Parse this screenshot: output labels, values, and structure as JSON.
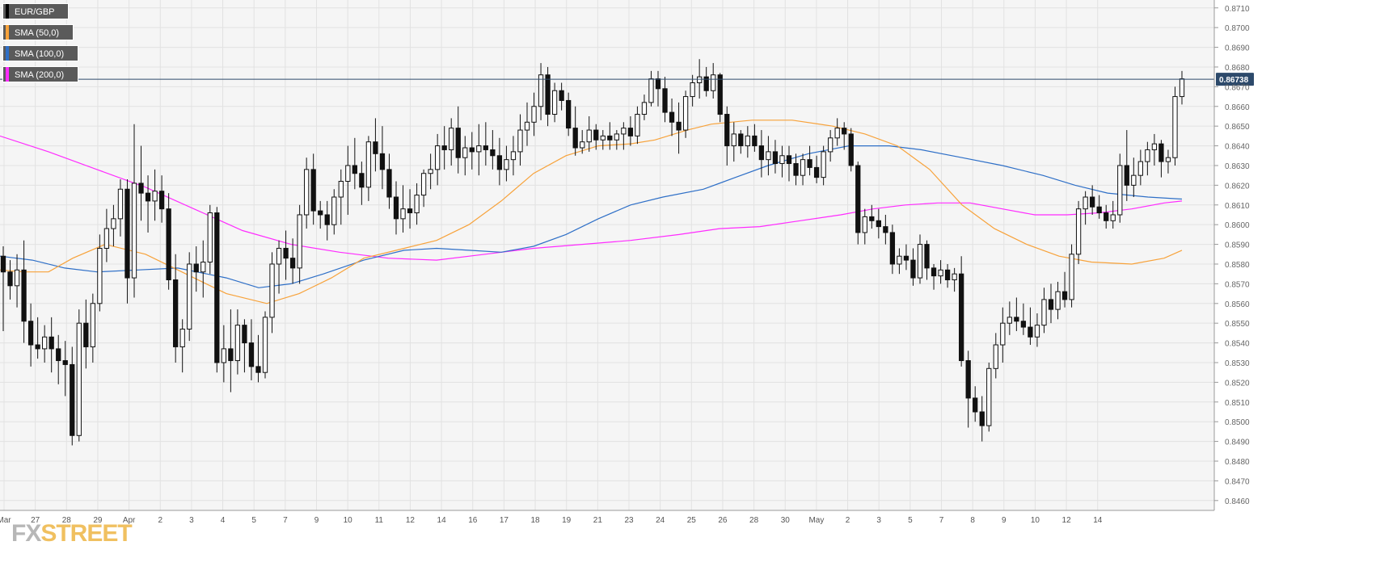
{
  "chart_data": {
    "type": "candlestick",
    "symbol": "EUR/GBP",
    "current_price_label": "0.86738",
    "current_price": 0.86738,
    "ylim": [
      0.8455,
      0.8714
    ],
    "y_ticks": [
      "0.8710",
      "0.8700",
      "0.8690",
      "0.8680",
      "0.8670",
      "0.8660",
      "0.8650",
      "0.8640",
      "0.8630",
      "0.8620",
      "0.8610",
      "0.8600",
      "0.8590",
      "0.8580",
      "0.8570",
      "0.8560",
      "0.8550",
      "0.8540",
      "0.8530",
      "0.8520",
      "0.8510",
      "0.8500",
      "0.8490",
      "0.8480",
      "0.8470",
      "0.8460"
    ],
    "x_ticks": [
      "Mar",
      "27",
      "28",
      "29",
      "Apr",
      "2",
      "3",
      "4",
      "5",
      "7",
      "9",
      "10",
      "11",
      "12",
      "14",
      "16",
      "17",
      "18",
      "19",
      "21",
      "23",
      "24",
      "25",
      "26",
      "28",
      "30",
      "May",
      "2",
      "3",
      "5",
      "7",
      "8",
      "9",
      "10",
      "12",
      "14"
    ],
    "grid": true,
    "legend": [
      {
        "label": "EUR/GBP",
        "color": "#000000"
      },
      {
        "label": "SMA (50,0)",
        "color": "#f7a23a"
      },
      {
        "label": "SMA (100,0)",
        "color": "#2e6fc7"
      },
      {
        "label": "SMA (200,0)",
        "color": "#ff2bff"
      }
    ],
    "candles": [
      [
        0.8584,
        0.8589,
        0.8546,
        0.8576
      ],
      [
        0.8576,
        0.8582,
        0.8562,
        0.8569
      ],
      [
        0.8569,
        0.8585,
        0.8558,
        0.8577
      ],
      [
        0.8577,
        0.8592,
        0.854,
        0.8551
      ],
      [
        0.8551,
        0.856,
        0.8528,
        0.8539
      ],
      [
        0.8539,
        0.8553,
        0.8532,
        0.8537
      ],
      [
        0.8537,
        0.8549,
        0.853,
        0.8543
      ],
      [
        0.8543,
        0.8553,
        0.8525,
        0.8537
      ],
      [
        0.8537,
        0.8544,
        0.8519,
        0.8531
      ],
      [
        0.8531,
        0.8541,
        0.8513,
        0.8529
      ],
      [
        0.8529,
        0.8538,
        0.8488,
        0.8493
      ],
      [
        0.8493,
        0.8557,
        0.849,
        0.855
      ],
      [
        0.855,
        0.8562,
        0.8527,
        0.8538
      ],
      [
        0.8538,
        0.8565,
        0.853,
        0.856
      ],
      [
        0.856,
        0.8595,
        0.8556,
        0.8588
      ],
      [
        0.8588,
        0.8608,
        0.8581,
        0.8598
      ],
      [
        0.8598,
        0.861,
        0.8589,
        0.8603
      ],
      [
        0.8603,
        0.8623,
        0.8594,
        0.8618
      ],
      [
        0.8618,
        0.8623,
        0.856,
        0.8573
      ],
      [
        0.8573,
        0.8651,
        0.8563,
        0.8621
      ],
      [
        0.8621,
        0.864,
        0.8602,
        0.8616
      ],
      [
        0.8616,
        0.8625,
        0.8596,
        0.8612
      ],
      [
        0.8612,
        0.8628,
        0.8602,
        0.8617
      ],
      [
        0.8617,
        0.8625,
        0.8601,
        0.8608
      ],
      [
        0.8608,
        0.8616,
        0.8567,
        0.8572
      ],
      [
        0.8572,
        0.8585,
        0.853,
        0.8538
      ],
      [
        0.8538,
        0.8552,
        0.8525,
        0.8547
      ],
      [
        0.8547,
        0.8586,
        0.8541,
        0.858
      ],
      [
        0.858,
        0.8589,
        0.8566,
        0.8576
      ],
      [
        0.8576,
        0.8592,
        0.8563,
        0.8581
      ],
      [
        0.8581,
        0.861,
        0.8575,
        0.8606
      ],
      [
        0.8606,
        0.8609,
        0.8525,
        0.853
      ],
      [
        0.853,
        0.8549,
        0.852,
        0.8537
      ],
      [
        0.8537,
        0.8557,
        0.8515,
        0.8531
      ],
      [
        0.8531,
        0.8557,
        0.8524,
        0.8549
      ],
      [
        0.8549,
        0.8552,
        0.8525,
        0.854
      ],
      [
        0.854,
        0.8552,
        0.8521,
        0.8528
      ],
      [
        0.8528,
        0.8544,
        0.852,
        0.8525
      ],
      [
        0.8525,
        0.8556,
        0.8522,
        0.8553
      ],
      [
        0.8553,
        0.8586,
        0.8545,
        0.858
      ],
      [
        0.858,
        0.8592,
        0.8565,
        0.8588
      ],
      [
        0.8588,
        0.8597,
        0.8572,
        0.8583
      ],
      [
        0.8583,
        0.8593,
        0.857,
        0.8578
      ],
      [
        0.8578,
        0.861,
        0.857,
        0.8605
      ],
      [
        0.8605,
        0.8634,
        0.8598,
        0.8628
      ],
      [
        0.8628,
        0.8636,
        0.86,
        0.8607
      ],
      [
        0.8607,
        0.8612,
        0.8598,
        0.8605
      ],
      [
        0.8605,
        0.8612,
        0.8592,
        0.86
      ],
      [
        0.86,
        0.8618,
        0.8595,
        0.8614
      ],
      [
        0.8614,
        0.8628,
        0.86,
        0.8622
      ],
      [
        0.8622,
        0.864,
        0.8605,
        0.863
      ],
      [
        0.863,
        0.8644,
        0.8618,
        0.8626
      ],
      [
        0.8626,
        0.8632,
        0.861,
        0.8619
      ],
      [
        0.8619,
        0.8645,
        0.8612,
        0.8642
      ],
      [
        0.8642,
        0.8654,
        0.8627,
        0.8636
      ],
      [
        0.8636,
        0.865,
        0.8618,
        0.8628
      ],
      [
        0.8628,
        0.8636,
        0.8608,
        0.8614
      ],
      [
        0.8614,
        0.8622,
        0.8595,
        0.8603
      ],
      [
        0.8603,
        0.862,
        0.8596,
        0.8608
      ],
      [
        0.8608,
        0.8618,
        0.8598,
        0.8606
      ],
      [
        0.8606,
        0.8621,
        0.86,
        0.8615
      ],
      [
        0.8615,
        0.8628,
        0.8609,
        0.8626
      ],
      [
        0.8626,
        0.8636,
        0.8618,
        0.8628
      ],
      [
        0.8628,
        0.8646,
        0.862,
        0.864
      ],
      [
        0.864,
        0.865,
        0.8628,
        0.8638
      ],
      [
        0.8638,
        0.8654,
        0.863,
        0.8649
      ],
      [
        0.8649,
        0.866,
        0.8626,
        0.8634
      ],
      [
        0.8634,
        0.8645,
        0.8625,
        0.8639
      ],
      [
        0.8639,
        0.8647,
        0.8628,
        0.8637
      ],
      [
        0.8637,
        0.8651,
        0.8625,
        0.864
      ],
      [
        0.864,
        0.8652,
        0.863,
        0.8638
      ],
      [
        0.8638,
        0.8648,
        0.8628,
        0.8635
      ],
      [
        0.8635,
        0.8644,
        0.862,
        0.8628
      ],
      [
        0.8628,
        0.864,
        0.8622,
        0.8633
      ],
      [
        0.8633,
        0.8645,
        0.8625,
        0.8637
      ],
      [
        0.8637,
        0.8656,
        0.863,
        0.8648
      ],
      [
        0.8648,
        0.8662,
        0.864,
        0.8652
      ],
      [
        0.8652,
        0.8667,
        0.8645,
        0.866
      ],
      [
        0.866,
        0.8682,
        0.8653,
        0.8676
      ],
      [
        0.8676,
        0.868,
        0.865,
        0.8656
      ],
      [
        0.8656,
        0.8672,
        0.8652,
        0.8668
      ],
      [
        0.8668,
        0.8672,
        0.8658,
        0.8663
      ],
      [
        0.8663,
        0.8667,
        0.8645,
        0.8649
      ],
      [
        0.8649,
        0.866,
        0.8635,
        0.8639
      ],
      [
        0.8639,
        0.8648,
        0.8636,
        0.8642
      ],
      [
        0.8642,
        0.8655,
        0.8637,
        0.8648
      ],
      [
        0.8648,
        0.8651,
        0.8638,
        0.8643
      ],
      [
        0.8643,
        0.8648,
        0.8638,
        0.8645
      ],
      [
        0.8645,
        0.8652,
        0.8638,
        0.8643
      ],
      [
        0.8643,
        0.8648,
        0.8638,
        0.8646
      ],
      [
        0.8646,
        0.8652,
        0.8638,
        0.8649
      ],
      [
        0.8649,
        0.8655,
        0.864,
        0.8645
      ],
      [
        0.8645,
        0.866,
        0.8641,
        0.8656
      ],
      [
        0.8656,
        0.8666,
        0.8653,
        0.8662
      ],
      [
        0.8662,
        0.8678,
        0.866,
        0.8674
      ],
      [
        0.8674,
        0.8678,
        0.866,
        0.8669
      ],
      [
        0.8669,
        0.8675,
        0.8652,
        0.8657
      ],
      [
        0.8657,
        0.8664,
        0.8645,
        0.8652
      ],
      [
        0.8652,
        0.8662,
        0.8636,
        0.8648
      ],
      [
        0.8648,
        0.8668,
        0.8644,
        0.8665
      ],
      [
        0.8665,
        0.8676,
        0.866,
        0.8672
      ],
      [
        0.8672,
        0.8684,
        0.8664,
        0.8675
      ],
      [
        0.8675,
        0.868,
        0.8665,
        0.8668
      ],
      [
        0.8668,
        0.8682,
        0.8664,
        0.8676
      ],
      [
        0.8676,
        0.8677,
        0.8652,
        0.8656
      ],
      [
        0.8656,
        0.866,
        0.863,
        0.864
      ],
      [
        0.864,
        0.8652,
        0.8632,
        0.8646
      ],
      [
        0.8646,
        0.8648,
        0.8636,
        0.864
      ],
      [
        0.864,
        0.865,
        0.8634,
        0.8645
      ],
      [
        0.8645,
        0.8651,
        0.8637,
        0.864
      ],
      [
        0.864,
        0.8648,
        0.8624,
        0.8633
      ],
      [
        0.8633,
        0.8645,
        0.8625,
        0.8637
      ],
      [
        0.8637,
        0.8643,
        0.8626,
        0.8631
      ],
      [
        0.8631,
        0.864,
        0.8624,
        0.8635
      ],
      [
        0.8635,
        0.864,
        0.8622,
        0.8631
      ],
      [
        0.8631,
        0.8636,
        0.862,
        0.8625
      ],
      [
        0.8625,
        0.8636,
        0.862,
        0.8633
      ],
      [
        0.8633,
        0.864,
        0.8625,
        0.8629
      ],
      [
        0.8629,
        0.8635,
        0.8621,
        0.8624
      ],
      [
        0.8624,
        0.864,
        0.862,
        0.8637
      ],
      [
        0.8637,
        0.8648,
        0.8632,
        0.8644
      ],
      [
        0.8644,
        0.8654,
        0.864,
        0.8649
      ],
      [
        0.8649,
        0.8652,
        0.8638,
        0.8646
      ],
      [
        0.8646,
        0.8649,
        0.8627,
        0.863
      ],
      [
        0.863,
        0.8632,
        0.859,
        0.8596
      ],
      [
        0.8596,
        0.8608,
        0.859,
        0.8604
      ],
      [
        0.8604,
        0.861,
        0.8598,
        0.8602
      ],
      [
        0.8602,
        0.8608,
        0.8593,
        0.8599
      ],
      [
        0.8599,
        0.8605,
        0.859,
        0.8596
      ],
      [
        0.8596,
        0.86,
        0.8575,
        0.858
      ],
      [
        0.858,
        0.8588,
        0.8575,
        0.8584
      ],
      [
        0.8584,
        0.859,
        0.8577,
        0.8582
      ],
      [
        0.8582,
        0.8588,
        0.8569,
        0.8573
      ],
      [
        0.8573,
        0.8595,
        0.857,
        0.859
      ],
      [
        0.859,
        0.8592,
        0.8572,
        0.8578
      ],
      [
        0.8578,
        0.858,
        0.8567,
        0.8574
      ],
      [
        0.8574,
        0.8582,
        0.857,
        0.8577
      ],
      [
        0.8577,
        0.858,
        0.8568,
        0.8572
      ],
      [
        0.8572,
        0.8578,
        0.8566,
        0.8575
      ],
      [
        0.8575,
        0.8584,
        0.8528,
        0.8531
      ],
      [
        0.8531,
        0.8536,
        0.8497,
        0.8512
      ],
      [
        0.8512,
        0.8518,
        0.85,
        0.8505
      ],
      [
        0.8505,
        0.8513,
        0.849,
        0.8498
      ],
      [
        0.8498,
        0.853,
        0.8495,
        0.8527
      ],
      [
        0.8527,
        0.8545,
        0.8522,
        0.8539
      ],
      [
        0.8539,
        0.8558,
        0.853,
        0.855
      ],
      [
        0.855,
        0.8561,
        0.8544,
        0.8553
      ],
      [
        0.8553,
        0.8563,
        0.8546,
        0.8551
      ],
      [
        0.8551,
        0.856,
        0.8544,
        0.8548
      ],
      [
        0.8548,
        0.8558,
        0.8539,
        0.8543
      ],
      [
        0.8543,
        0.8555,
        0.8538,
        0.8549
      ],
      [
        0.8549,
        0.8568,
        0.8545,
        0.8562
      ],
      [
        0.8562,
        0.857,
        0.855,
        0.8557
      ],
      [
        0.8557,
        0.8571,
        0.8552,
        0.8566
      ],
      [
        0.8566,
        0.8576,
        0.8558,
        0.8562
      ],
      [
        0.8562,
        0.859,
        0.8558,
        0.8585
      ],
      [
        0.8585,
        0.8612,
        0.858,
        0.8608
      ],
      [
        0.8608,
        0.8617,
        0.86,
        0.8614
      ],
      [
        0.8614,
        0.862,
        0.8605,
        0.8609
      ],
      [
        0.8609,
        0.8615,
        0.8603,
        0.8606
      ],
      [
        0.8606,
        0.861,
        0.8598,
        0.8602
      ],
      [
        0.8602,
        0.8612,
        0.8598,
        0.8605
      ],
      [
        0.8605,
        0.8636,
        0.8601,
        0.863
      ],
      [
        0.863,
        0.8648,
        0.8612,
        0.862
      ],
      [
        0.862,
        0.8634,
        0.8614,
        0.8625
      ],
      [
        0.8625,
        0.8638,
        0.862,
        0.8632
      ],
      [
        0.8632,
        0.8642,
        0.8625,
        0.8638
      ],
      [
        0.8638,
        0.8646,
        0.863,
        0.8641
      ],
      [
        0.8641,
        0.8643,
        0.8624,
        0.8632
      ],
      [
        0.8632,
        0.8638,
        0.8626,
        0.8634
      ],
      [
        0.8634,
        0.867,
        0.863,
        0.8665
      ],
      [
        0.8665,
        0.8678,
        0.8661,
        0.8674
      ]
    ],
    "sma50": [
      [
        0,
        0.8577
      ],
      [
        30,
        0.8576
      ],
      [
        60,
        0.8576
      ],
      [
        90,
        0.8583
      ],
      [
        130,
        0.859
      ],
      [
        180,
        0.8585
      ],
      [
        230,
        0.8575
      ],
      [
        280,
        0.8565
      ],
      [
        330,
        0.856
      ],
      [
        370,
        0.8565
      ],
      [
        410,
        0.8573
      ],
      [
        450,
        0.8583
      ],
      [
        500,
        0.8588
      ],
      [
        540,
        0.8592
      ],
      [
        580,
        0.86
      ],
      [
        620,
        0.8612
      ],
      [
        660,
        0.8626
      ],
      [
        700,
        0.8635
      ],
      [
        740,
        0.864
      ],
      [
        780,
        0.8641
      ],
      [
        810,
        0.8643
      ],
      [
        850,
        0.8648
      ],
      [
        880,
        0.8651
      ],
      [
        930,
        0.8653
      ],
      [
        980,
        0.8653
      ],
      [
        1030,
        0.865
      ],
      [
        1070,
        0.8646
      ],
      [
        1110,
        0.864
      ],
      [
        1150,
        0.8628
      ],
      [
        1190,
        0.861
      ],
      [
        1230,
        0.8598
      ],
      [
        1270,
        0.859
      ],
      [
        1310,
        0.8584
      ],
      [
        1350,
        0.8581
      ],
      [
        1400,
        0.858
      ],
      [
        1440,
        0.8583
      ],
      [
        1462,
        0.8587
      ]
    ],
    "sma100": [
      [
        0,
        0.8584
      ],
      [
        40,
        0.8582
      ],
      [
        80,
        0.8578
      ],
      [
        120,
        0.8576
      ],
      [
        170,
        0.8577
      ],
      [
        220,
        0.8578
      ],
      [
        280,
        0.8573
      ],
      [
        320,
        0.8568
      ],
      [
        360,
        0.857
      ],
      [
        400,
        0.8575
      ],
      [
        450,
        0.8582
      ],
      [
        500,
        0.8587
      ],
      [
        540,
        0.8588
      ],
      [
        580,
        0.8587
      ],
      [
        620,
        0.8586
      ],
      [
        660,
        0.8589
      ],
      [
        700,
        0.8595
      ],
      [
        740,
        0.8603
      ],
      [
        780,
        0.861
      ],
      [
        820,
        0.8614
      ],
      [
        870,
        0.8618
      ],
      [
        910,
        0.8624
      ],
      [
        950,
        0.863
      ],
      [
        1000,
        0.8636
      ],
      [
        1050,
        0.864
      ],
      [
        1100,
        0.864
      ],
      [
        1140,
        0.8638
      ],
      [
        1190,
        0.8634
      ],
      [
        1240,
        0.863
      ],
      [
        1290,
        0.8625
      ],
      [
        1330,
        0.862
      ],
      [
        1370,
        0.8616
      ],
      [
        1420,
        0.8614
      ],
      [
        1462,
        0.8613
      ]
    ],
    "sma200": [
      [
        0,
        0.8645
      ],
      [
        60,
        0.8637
      ],
      [
        120,
        0.8628
      ],
      [
        180,
        0.8619
      ],
      [
        240,
        0.8608
      ],
      [
        300,
        0.8597
      ],
      [
        360,
        0.859
      ],
      [
        420,
        0.8586
      ],
      [
        480,
        0.8583
      ],
      [
        540,
        0.8582
      ],
      [
        600,
        0.8585
      ],
      [
        660,
        0.8588
      ],
      [
        720,
        0.859
      ],
      [
        780,
        0.8592
      ],
      [
        840,
        0.8595
      ],
      [
        890,
        0.8598
      ],
      [
        940,
        0.8599
      ],
      [
        990,
        0.8602
      ],
      [
        1040,
        0.8605
      ],
      [
        1080,
        0.8608
      ],
      [
        1120,
        0.861
      ],
      [
        1160,
        0.8611
      ],
      [
        1200,
        0.8611
      ],
      [
        1240,
        0.8608
      ],
      [
        1280,
        0.8605
      ],
      [
        1320,
        0.8605
      ],
      [
        1360,
        0.8606
      ],
      [
        1400,
        0.8608
      ],
      [
        1440,
        0.8611
      ],
      [
        1462,
        0.8612
      ]
    ]
  },
  "watermark": {
    "fx": "FX",
    "street": "STREET"
  }
}
